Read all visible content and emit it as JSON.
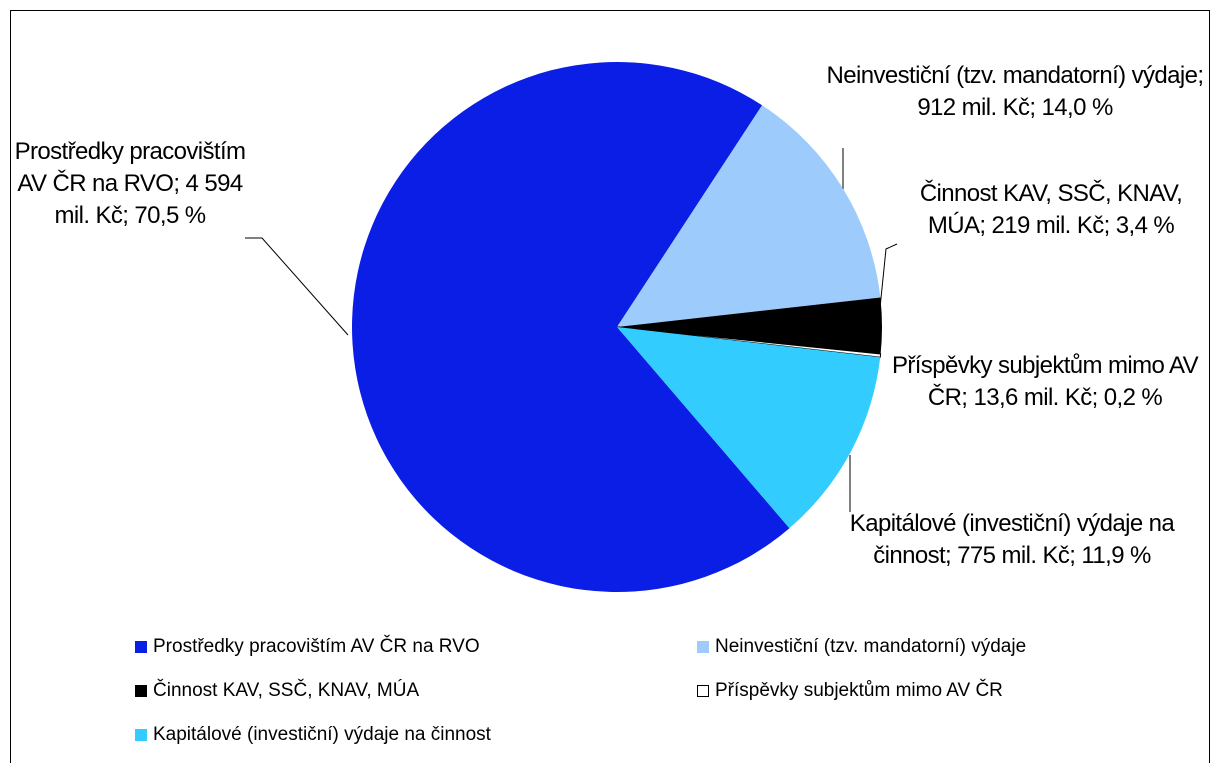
{
  "chart_data": {
    "type": "pie",
    "categories": [
      "Prostředky pracovištím AV ČR na RVO",
      "Neinvestiční (tzv. mandatorní) výdaje",
      "Činnost KAV, SSČ, KNAV, MÚA",
      "Příspěvky subjektům mimo AV ČR",
      "Kapitálové (investiční) výdaje na činnost"
    ],
    "values": [
      70.5,
      14.0,
      3.4,
      0.2,
      11.9
    ],
    "value_labels": [
      "Prostředky pracovištím AV ČR na RVO; 4 594 mil. Kč; 70,5 %",
      "Neinvestiční (tzv. mandatorní) výdaje; 912 mil. Kč; 14,0 %",
      "Činnost KAV, SSČ, KNAV, MÚA; 219 mil. Kč; 3,4 %",
      "Příspěvky subjektům mimo AV ČR; 13,6 mil. Kč; 0,2 %",
      "Kapitálové (investiční) výdaje na činnost; 775 mil. Kč; 11,9 %"
    ],
    "colors": [
      "#0b1ee6",
      "#9dcbfb",
      "#000000",
      "#ffffff",
      "#33ccff"
    ],
    "legend": "bottom"
  }
}
